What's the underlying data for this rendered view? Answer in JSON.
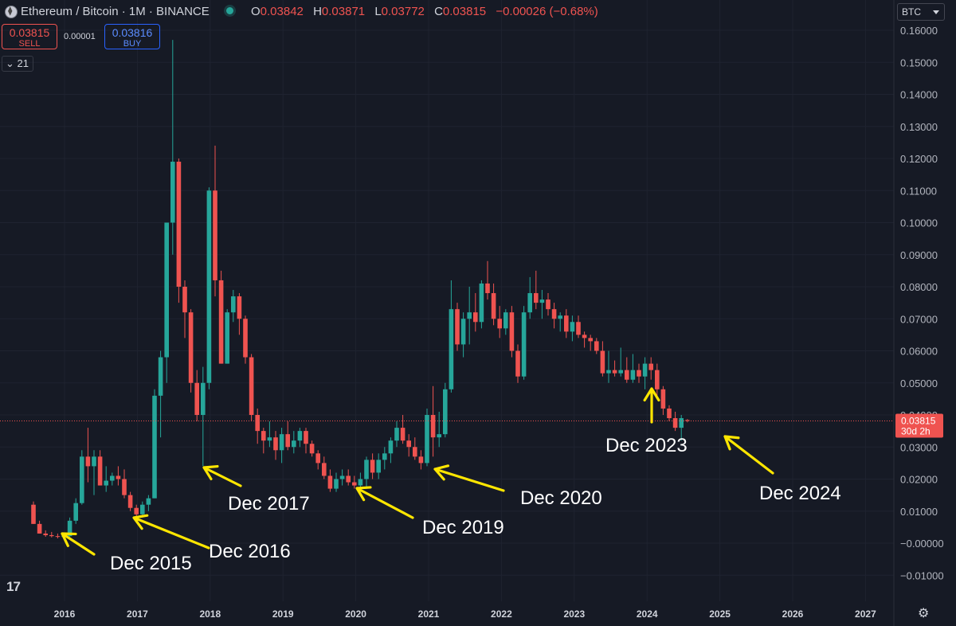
{
  "header": {
    "symbol": "Ethereum / Bitcoin · 1M · BINANCE",
    "ohlc": [
      {
        "key": "O",
        "value": "0.03842"
      },
      {
        "key": "H",
        "value": "0.03871"
      },
      {
        "key": "L",
        "value": "0.03772"
      },
      {
        "key": "C",
        "value": "0.03815"
      }
    ],
    "change": "−0.00026 (−0.68%)"
  },
  "trade": {
    "sell_price": "0.03815",
    "sell_label": "SELL",
    "spread": "0.00001",
    "buy_price": "0.03816",
    "buy_label": "BUY"
  },
  "indicator_collapse": "21",
  "currency_button": "BTC",
  "last_price": {
    "value": "0.03815",
    "countdown": "30d 2h"
  },
  "colors": {
    "up": "#26a69a",
    "down": "#ef5350",
    "background": "#161a25",
    "annotation": "#ffe600",
    "grid": "#1f2330"
  },
  "icons": [
    "tradingview-logo-icon",
    "settings-gear-icon",
    "status-dot-icon",
    "ethereum-coin-icon"
  ],
  "chart_data": {
    "type": "candlestick",
    "title": "Ethereum / Bitcoin · 1M · BINANCE",
    "y_ticks": [
      "0.16000",
      "0.15000",
      "0.14000",
      "0.13000",
      "0.12000",
      "0.11000",
      "0.10000",
      "0.09000",
      "0.08000",
      "0.07000",
      "0.06000",
      "0.05000",
      "0.04000",
      "0.03000",
      "0.02000",
      "0.01000",
      "−0.00000",
      "−0.01000"
    ],
    "x_ticks": [
      "2016",
      "2017",
      "2018",
      "2019",
      "2020",
      "2021",
      "2022",
      "2023",
      "2024",
      "2025",
      "2026",
      "2027"
    ],
    "ylim": [
      -0.0125,
      0.1625
    ],
    "series": [
      {
        "name": "ETH/BTC monthly",
        "ohlc": [
          [
            0.012,
            0.013,
            0.006,
            0.006
          ],
          [
            0.006,
            0.007,
            0.003,
            0.003
          ],
          [
            0.003,
            0.004,
            0.002,
            0.0025
          ],
          [
            0.0025,
            0.0035,
            0.0018,
            0.0022
          ],
          [
            0.0022,
            0.003,
            0.0015,
            0.002
          ],
          [
            0.002,
            0.003,
            0.0015,
            0.0022
          ],
          [
            0.0022,
            0.008,
            0.002,
            0.007
          ],
          [
            0.007,
            0.014,
            0.006,
            0.0125
          ],
          [
            0.0125,
            0.029,
            0.012,
            0.027
          ],
          [
            0.027,
            0.036,
            0.019,
            0.024
          ],
          [
            0.024,
            0.029,
            0.015,
            0.027
          ],
          [
            0.027,
            0.029,
            0.018,
            0.018
          ],
          [
            0.018,
            0.024,
            0.016,
            0.0195
          ],
          [
            0.0195,
            0.022,
            0.018,
            0.021
          ],
          [
            0.021,
            0.024,
            0.018,
            0.02
          ],
          [
            0.02,
            0.023,
            0.014,
            0.015
          ],
          [
            0.015,
            0.016,
            0.01,
            0.011
          ],
          [
            0.011,
            0.012,
            0.008,
            0.009
          ],
          [
            0.009,
            0.013,
            0.008,
            0.012
          ],
          [
            0.012,
            0.015,
            0.01,
            0.014
          ],
          [
            0.014,
            0.048,
            0.014,
            0.046
          ],
          [
            0.046,
            0.06,
            0.033,
            0.058
          ],
          [
            0.058,
            0.1,
            0.05,
            0.1
          ],
          [
            0.1,
            0.157,
            0.09,
            0.119
          ],
          [
            0.119,
            0.12,
            0.075,
            0.08
          ],
          [
            0.08,
            0.082,
            0.064,
            0.072
          ],
          [
            0.072,
            0.073,
            0.047,
            0.05
          ],
          [
            0.05,
            0.054,
            0.038,
            0.04
          ],
          [
            0.04,
            0.055,
            0.024,
            0.05
          ],
          [
            0.05,
            0.111,
            0.048,
            0.11
          ],
          [
            0.11,
            0.124,
            0.077,
            0.082
          ],
          [
            0.082,
            0.085,
            0.056,
            0.056
          ],
          [
            0.056,
            0.073,
            0.056,
            0.072
          ],
          [
            0.072,
            0.079,
            0.069,
            0.077
          ],
          [
            0.077,
            0.078,
            0.065,
            0.07
          ],
          [
            0.07,
            0.071,
            0.056,
            0.058
          ],
          [
            0.058,
            0.059,
            0.038,
            0.04
          ],
          [
            0.04,
            0.042,
            0.031,
            0.035
          ],
          [
            0.035,
            0.036,
            0.028,
            0.032
          ],
          [
            0.032,
            0.038,
            0.03,
            0.033
          ],
          [
            0.033,
            0.035,
            0.026,
            0.029
          ],
          [
            0.029,
            0.036,
            0.025,
            0.034
          ],
          [
            0.034,
            0.038,
            0.029,
            0.03
          ],
          [
            0.03,
            0.035,
            0.028,
            0.032
          ],
          [
            0.032,
            0.036,
            0.03,
            0.035
          ],
          [
            0.035,
            0.036,
            0.028,
            0.031
          ],
          [
            0.031,
            0.032,
            0.027,
            0.028
          ],
          [
            0.028,
            0.029,
            0.023,
            0.025
          ],
          [
            0.025,
            0.027,
            0.02,
            0.021
          ],
          [
            0.021,
            0.023,
            0.016,
            0.017
          ],
          [
            0.017,
            0.022,
            0.016,
            0.02
          ],
          [
            0.02,
            0.023,
            0.018,
            0.021
          ],
          [
            0.021,
            0.023,
            0.018,
            0.019
          ],
          [
            0.019,
            0.021,
            0.017,
            0.018
          ],
          [
            0.018,
            0.022,
            0.016,
            0.02
          ],
          [
            0.02,
            0.027,
            0.017,
            0.026
          ],
          [
            0.026,
            0.028,
            0.02,
            0.022
          ],
          [
            0.022,
            0.028,
            0.02,
            0.026
          ],
          [
            0.026,
            0.03,
            0.023,
            0.028
          ],
          [
            0.028,
            0.033,
            0.025,
            0.032
          ],
          [
            0.032,
            0.038,
            0.03,
            0.036
          ],
          [
            0.036,
            0.04,
            0.031,
            0.032
          ],
          [
            0.032,
            0.034,
            0.027,
            0.03
          ],
          [
            0.03,
            0.033,
            0.026,
            0.027
          ],
          [
            0.027,
            0.029,
            0.023,
            0.025
          ],
          [
            0.025,
            0.042,
            0.024,
            0.04
          ],
          [
            0.04,
            0.049,
            0.027,
            0.033
          ],
          [
            0.033,
            0.041,
            0.03,
            0.034
          ],
          [
            0.034,
            0.05,
            0.033,
            0.048
          ],
          [
            0.048,
            0.082,
            0.047,
            0.073
          ],
          [
            0.073,
            0.075,
            0.06,
            0.062
          ],
          [
            0.062,
            0.072,
            0.058,
            0.07
          ],
          [
            0.07,
            0.08,
            0.062,
            0.072
          ],
          [
            0.072,
            0.078,
            0.066,
            0.069
          ],
          [
            0.069,
            0.082,
            0.067,
            0.081
          ],
          [
            0.081,
            0.088,
            0.076,
            0.078
          ],
          [
            0.078,
            0.081,
            0.068,
            0.07
          ],
          [
            0.07,
            0.074,
            0.064,
            0.067
          ],
          [
            0.067,
            0.073,
            0.065,
            0.072
          ],
          [
            0.072,
            0.074,
            0.058,
            0.06
          ],
          [
            0.06,
            0.062,
            0.05,
            0.052
          ],
          [
            0.052,
            0.074,
            0.051,
            0.072
          ],
          [
            0.072,
            0.083,
            0.07,
            0.078
          ],
          [
            0.078,
            0.085,
            0.073,
            0.075
          ],
          [
            0.075,
            0.079,
            0.07,
            0.076
          ],
          [
            0.076,
            0.078,
            0.071,
            0.073
          ],
          [
            0.073,
            0.075,
            0.067,
            0.07
          ],
          [
            0.07,
            0.072,
            0.066,
            0.071
          ],
          [
            0.071,
            0.073,
            0.064,
            0.066
          ],
          [
            0.066,
            0.071,
            0.063,
            0.069
          ],
          [
            0.069,
            0.071,
            0.064,
            0.065
          ],
          [
            0.065,
            0.066,
            0.061,
            0.064
          ],
          [
            0.064,
            0.065,
            0.06,
            0.063
          ],
          [
            0.063,
            0.064,
            0.059,
            0.06
          ],
          [
            0.06,
            0.063,
            0.052,
            0.053
          ],
          [
            0.053,
            0.06,
            0.05,
            0.054
          ],
          [
            0.054,
            0.057,
            0.052,
            0.053
          ],
          [
            0.053,
            0.061,
            0.052,
            0.054
          ],
          [
            0.054,
            0.058,
            0.05,
            0.051
          ],
          [
            0.051,
            0.059,
            0.05,
            0.054
          ],
          [
            0.054,
            0.056,
            0.05,
            0.052
          ],
          [
            0.052,
            0.058,
            0.048,
            0.056
          ],
          [
            0.056,
            0.058,
            0.051,
            0.054
          ],
          [
            0.054,
            0.056,
            0.046,
            0.048
          ],
          [
            0.048,
            0.049,
            0.04,
            0.042
          ],
          [
            0.042,
            0.043,
            0.038,
            0.039
          ],
          [
            0.039,
            0.041,
            0.035,
            0.036
          ],
          [
            0.036,
            0.04,
            0.032,
            0.039
          ],
          [
            0.0384,
            0.0387,
            0.0377,
            0.0382
          ]
        ]
      }
    ],
    "annotations": [
      "Dec 2015",
      "Dec 2016",
      "Dec 2017",
      "Dec 2019",
      "Dec 2020",
      "Dec 2023",
      "Dec 2024"
    ]
  }
}
